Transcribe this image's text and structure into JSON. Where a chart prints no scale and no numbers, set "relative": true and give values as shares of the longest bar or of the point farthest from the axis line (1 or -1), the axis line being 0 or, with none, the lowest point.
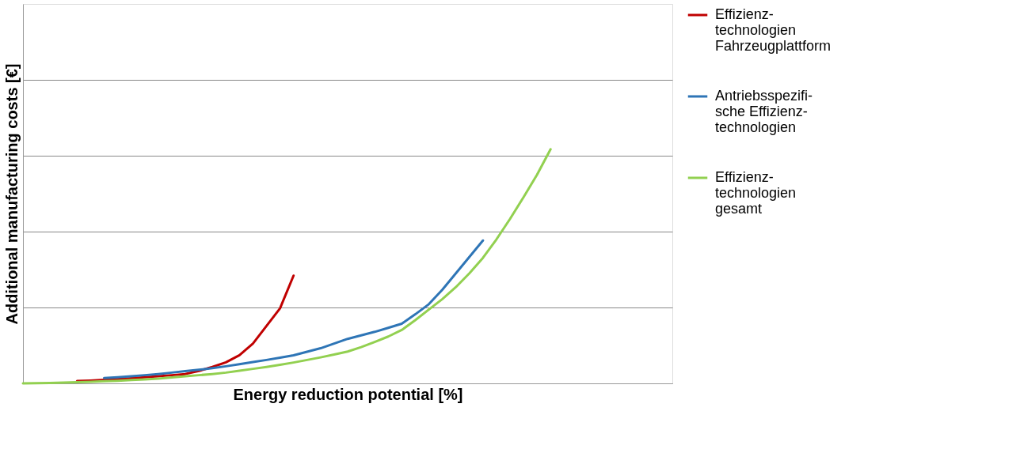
{
  "chart_data": {
    "type": "line",
    "relative": true,
    "xlabel": "Energy reduction potential [%]",
    "ylabel": "Additional manufacturing costs [€]",
    "grid": "y",
    "legend": "right",
    "marker": "none",
    "line_style": "solid",
    "categories": [
      null,
      null,
      null,
      null,
      null,
      null,
      null,
      null,
      null,
      null,
      null,
      null,
      null,
      null,
      null,
      null,
      null,
      null,
      null,
      null,
      null,
      null,
      null,
      null,
      null,
      null,
      null,
      null,
      null,
      null,
      null,
      null,
      null,
      null,
      null,
      null,
      null,
      null,
      null,
      null,
      null,
      null,
      null,
      null,
      null,
      null,
      null,
      null,
      null
    ],
    "series": [
      {
        "name": "Effizienz-\ntechnologien\nFahrzeugplattform",
        "color": "#c00000",
        "values": [
          null,
          null,
          null,
          null,
          0.01,
          0.012,
          0.015,
          0.018,
          0.022,
          0.026,
          0.03,
          0.035,
          0.04,
          0.053,
          0.07,
          0.09,
          0.12,
          0.17,
          0.245,
          0.32,
          0.46,
          null,
          null,
          null,
          null,
          null,
          null,
          null,
          null,
          null,
          null,
          null,
          null,
          null,
          null,
          null,
          null,
          null,
          null,
          null,
          null,
          null,
          null,
          null,
          null,
          null,
          null,
          null,
          null
        ]
      },
      {
        "name": "Antriebsspezifi-\nsche Effizienz-\ntechnologien",
        "color": "#2e75b6",
        "values": [
          null,
          null,
          null,
          null,
          null,
          null,
          0.023,
          0.026,
          0.03,
          0.035,
          0.04,
          0.046,
          0.052,
          0.058,
          0.065,
          0.073,
          0.082,
          0.091,
          0.1,
          0.11,
          0.12,
          0.135,
          0.15,
          0.17,
          0.19,
          0.205,
          0.22,
          0.237,
          0.255,
          0.295,
          0.338,
          0.4,
          0.47,
          0.54,
          0.61,
          null,
          null,
          null,
          null,
          null,
          null,
          null,
          null,
          null,
          null,
          null,
          null,
          null,
          null
        ]
      },
      {
        "name": "Effizienz-\ntechnologien\ngesamt",
        "color": "#92d050",
        "values": [
          0,
          0.001,
          0.002,
          0.003,
          0.005,
          0.007,
          0.009,
          0.011,
          0.014,
          0.017,
          0.02,
          0.025,
          0.03,
          0.035,
          0.04,
          0.046,
          0.054,
          0.062,
          0.07,
          0.079,
          0.089,
          0.1,
          0.111,
          0.123,
          0.136,
          0.155,
          0.177,
          0.2,
          0.228,
          0.27,
          0.315,
          0.36,
          0.411,
          0.47,
          0.536,
          0.615,
          0.702,
          0.795,
          0.891,
          1,
          null,
          null,
          null,
          null,
          null,
          null,
          null,
          null,
          null
        ]
      }
    ]
  }
}
